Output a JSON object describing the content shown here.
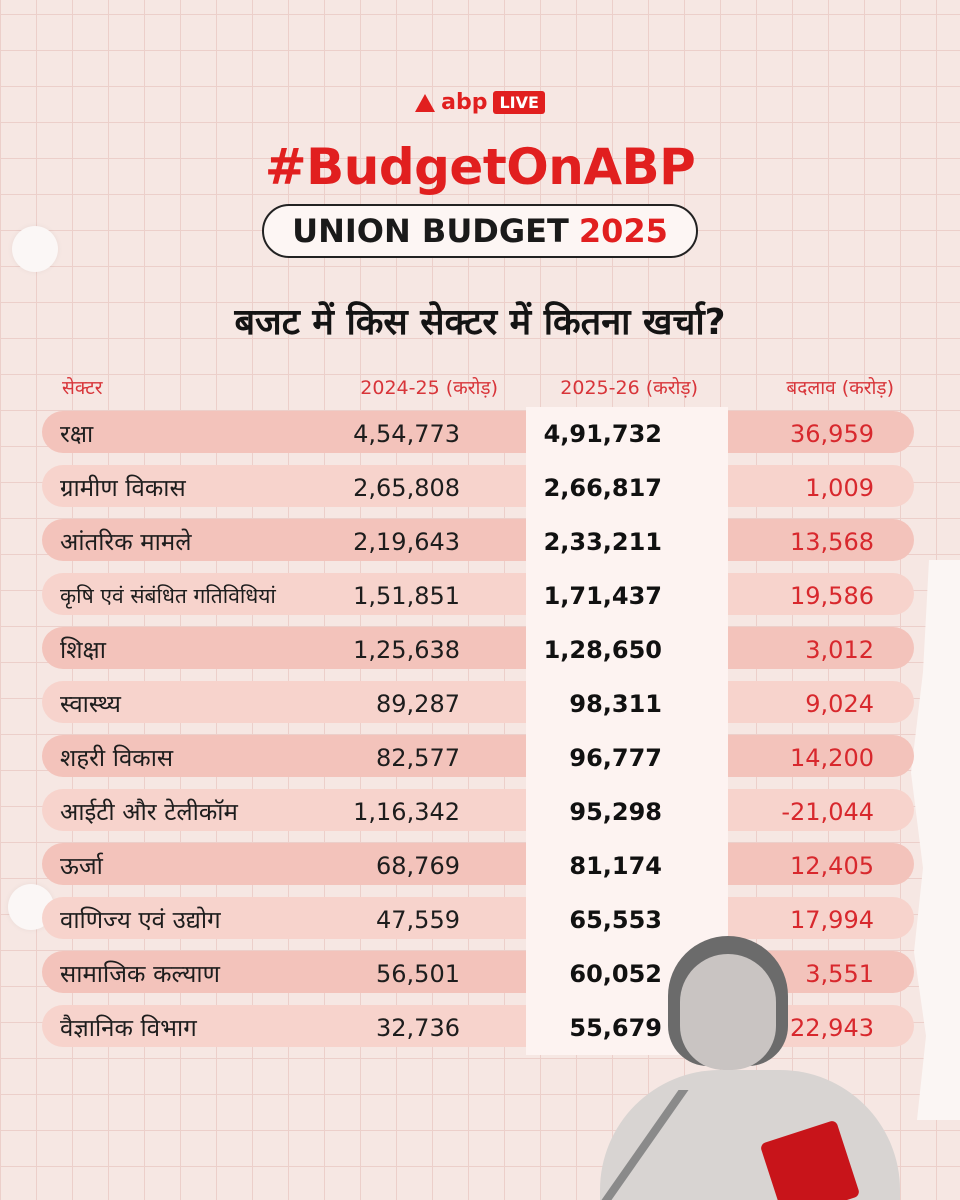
{
  "brand": {
    "name": "abp",
    "badge": "LIVE"
  },
  "hashtag": "#BudgetOnABP",
  "subtitle": {
    "text": "UNION BUDGET",
    "year": "2025"
  },
  "headline": "बजट में किस सेक्टर में कितना खर्चा?",
  "columns": {
    "sector": "सेक्टर",
    "prev": "2024-25 (करोड़)",
    "curr": "2025-26 (करोड़)",
    "change": "बदलाव (करोड़)"
  },
  "rows": [
    {
      "sector": "रक्षा",
      "prev": "4,54,773",
      "curr": "4,91,732",
      "change": "36,959"
    },
    {
      "sector": "ग्रामीण विकास",
      "prev": "2,65,808",
      "curr": "2,66,817",
      "change": "1,009"
    },
    {
      "sector": "आंतरिक मामले",
      "prev": "2,19,643",
      "curr": "2,33,211",
      "change": "13,568"
    },
    {
      "sector": "कृषि एवं संबंधित गतिविधियां",
      "prev": "1,51,851",
      "curr": "1,71,437",
      "change": "19,586"
    },
    {
      "sector": "शिक्षा",
      "prev": "1,25,638",
      "curr": "1,28,650",
      "change": "3,012"
    },
    {
      "sector": "स्वास्थ्य",
      "prev": "89,287",
      "curr": "98,311",
      "change": "9,024"
    },
    {
      "sector": "शहरी विकास",
      "prev": "82,577",
      "curr": "96,777",
      "change": "14,200"
    },
    {
      "sector": "आईटी और टेलीकॉम",
      "prev": "1,16,342",
      "curr": "95,298",
      "change": "-21,044"
    },
    {
      "sector": "ऊर्जा",
      "prev": "68,769",
      "curr": "81,174",
      "change": "12,405"
    },
    {
      "sector": "वाणिज्य एवं उद्योग",
      "prev": "47,559",
      "curr": "65,553",
      "change": "17,994"
    },
    {
      "sector": "सामाजिक कल्याण",
      "prev": "56,501",
      "curr": "60,052",
      "change": "3,551"
    },
    {
      "sector": "वैज्ञानिक विभाग",
      "prev": "32,736",
      "curr": "55,679",
      "change": "22,943"
    }
  ],
  "colors": {
    "accent": "#e11f1f",
    "row": "#f3c3bb",
    "background": "#f6e7e3"
  }
}
